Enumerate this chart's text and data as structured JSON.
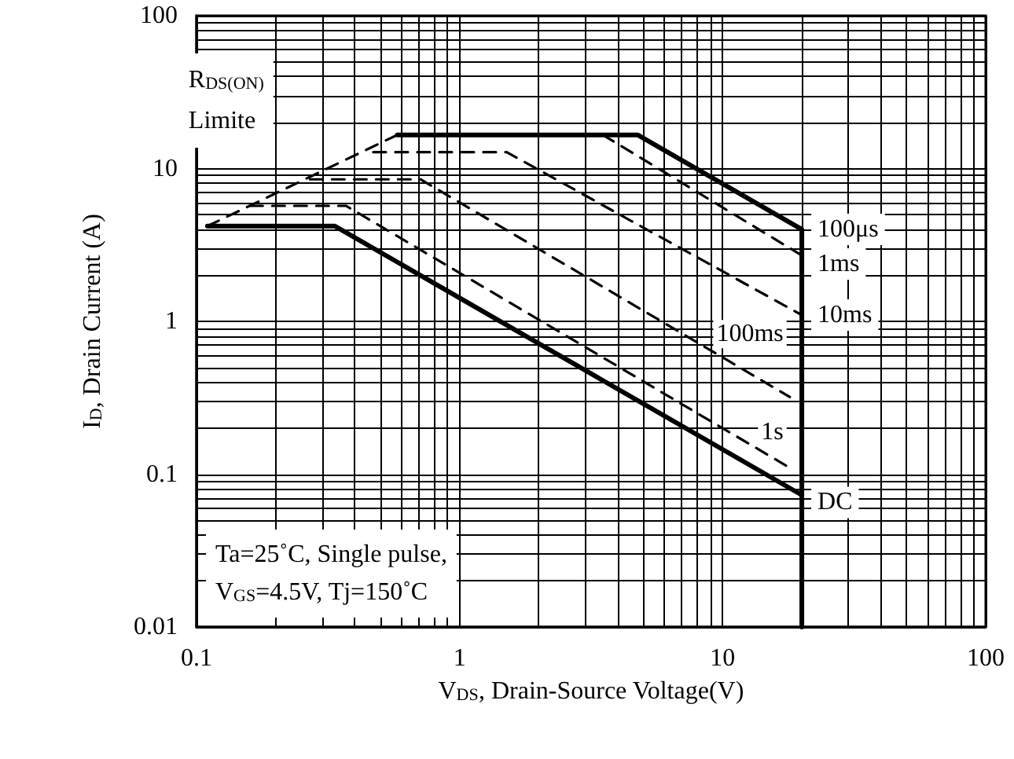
{
  "chart_data": {
    "type": "line",
    "xlabel": "V$_{DS}$, Drain-Source Voltage(V)",
    "ylabel": "I$_{D}$, Drain Current (A)",
    "annotations": [
      "Ta=25˚C, Single pulse,",
      "V$_{GS}$=4.5V, Tj=150˚C"
    ],
    "log": "xy",
    "grid": true,
    "legend": false,
    "marker": "none",
    "xlim": [
      0.1,
      100
    ],
    "xticks": [
      0.1,
      1,
      10,
      100
    ],
    "ylim": [
      0.01,
      100
    ],
    "yticks": [
      0.01,
      0.1,
      1,
      10,
      100
    ],
    "series": [
      {
        "name": "R$_{DS(ON)}$ Limite",
        "color": "#000000",
        "line_style": "dashed",
        "x": [
          0.11,
          0.58
        ],
        "values": [
          4.2,
          16.6
        ]
      },
      {
        "name": "100μs",
        "color": "#000000",
        "line_style": "solid",
        "x": [
          0.58,
          4.75,
          20,
          20
        ],
        "values": [
          16.6,
          16.6,
          4,
          0.01
        ]
      },
      {
        "name": "1ms",
        "color": "#000000",
        "line_style": "dashed",
        "x": [
          3.5,
          20
        ],
        "values": [
          16.6,
          2.7
        ]
      },
      {
        "name": "10ms",
        "color": "#000000",
        "line_style": "dashed",
        "x": [
          0.47,
          1.51,
          20
        ],
        "values": [
          12.8,
          12.8,
          1.1
        ]
      },
      {
        "name": "100ms",
        "color": "#000000",
        "line_style": "dashed",
        "x": [
          0.27,
          0.71,
          18
        ],
        "values": [
          8.5,
          8.5,
          0.32
        ]
      },
      {
        "name": "1s",
        "color": "#000000",
        "line_style": "dashed",
        "x": [
          0.16,
          0.37,
          18
        ],
        "values": [
          5.7,
          5.7,
          0.11
        ]
      },
      {
        "name": "DC",
        "color": "#000000",
        "line_style": "solid",
        "x": [
          0.11,
          0.336,
          20
        ],
        "values": [
          4.2,
          4.2,
          0.073
        ]
      }
    ]
  }
}
